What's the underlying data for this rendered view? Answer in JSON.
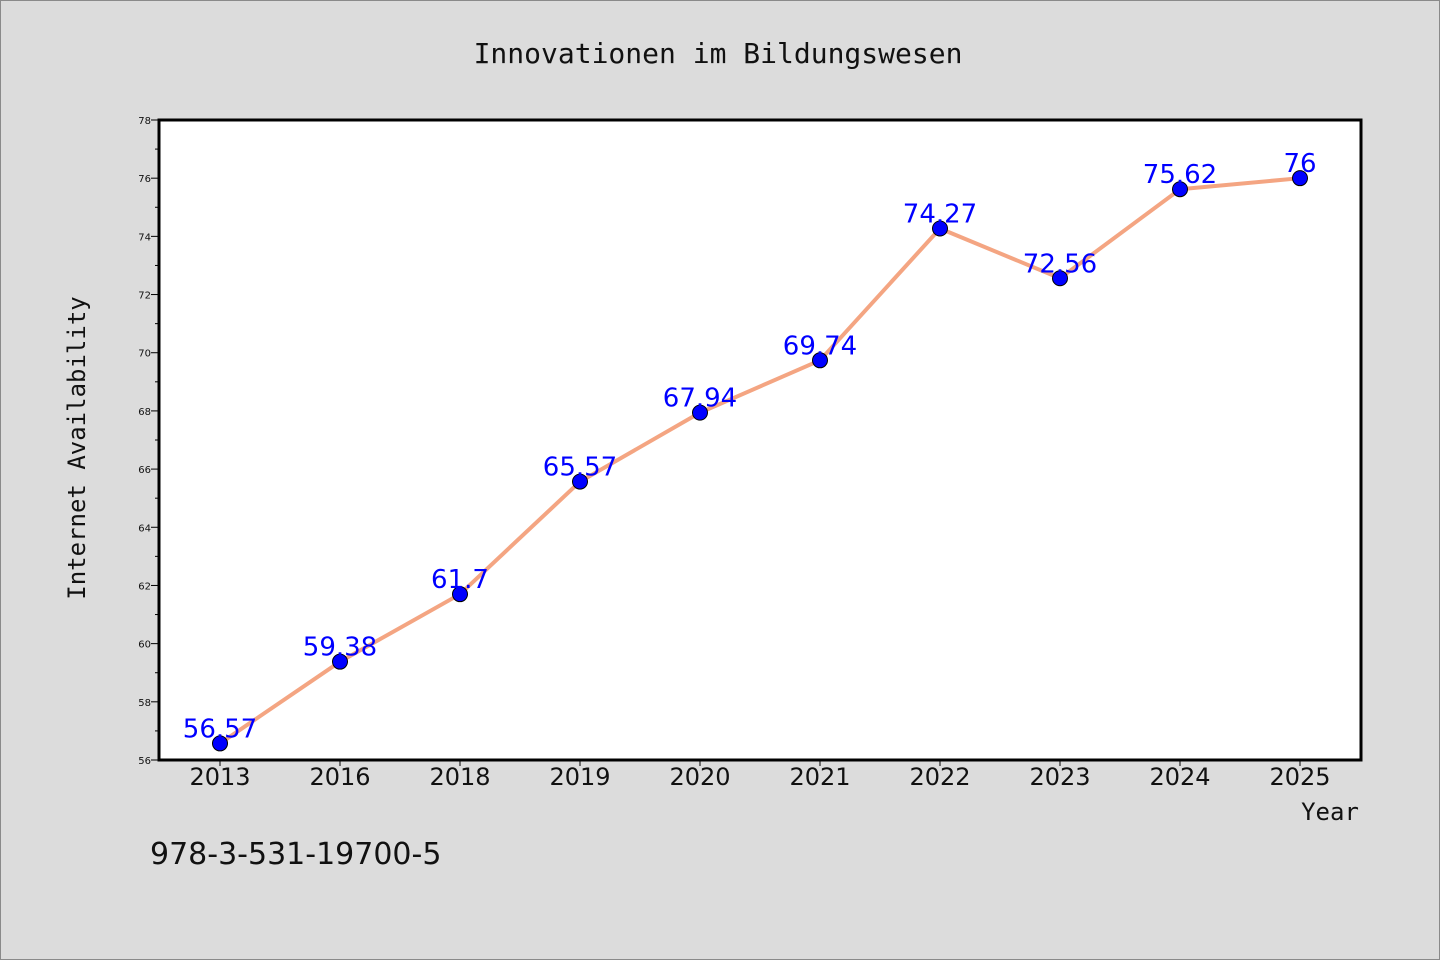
{
  "chart_data": {
    "type": "line",
    "title": "Innovationen im Bildungswesen",
    "xlabel": "Year",
    "ylabel": "Internet Availability",
    "categories": [
      "2013",
      "2016",
      "2018",
      "2019",
      "2020",
      "2021",
      "2022",
      "2023",
      "2024",
      "2025"
    ],
    "values": [
      56.57,
      59.38,
      61.7,
      65.57,
      67.94,
      69.74,
      74.27,
      72.56,
      75.62,
      76
    ],
    "data_labels": [
      "56.57",
      "59.38",
      "61.7",
      "65.57",
      "67.94",
      "69.74",
      "74.27",
      "72.56",
      "75.62",
      "76"
    ],
    "ylim": [
      56,
      78
    ],
    "yticks": [
      "56",
      "58",
      "60",
      "62",
      "64",
      "66",
      "68",
      "70",
      "72",
      "74",
      "76",
      "78"
    ],
    "grid": false,
    "legend": "none",
    "line_color": "#f4a582",
    "marker_color": "#0000ff",
    "label_color": "#0000ff"
  },
  "footer": {
    "isbn": "978-3-531-19700-5"
  }
}
